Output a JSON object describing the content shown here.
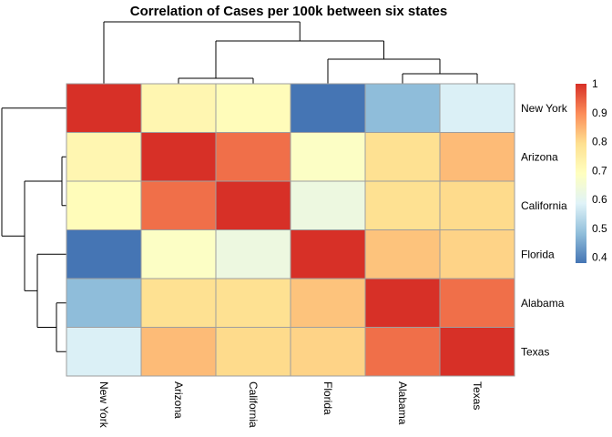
{
  "chart_data": {
    "type": "heatmap",
    "title": "Correlation of Cases per 100k between six states",
    "rows": [
      "New York",
      "Arizona",
      "California",
      "Florida",
      "Alabama",
      "Texas"
    ],
    "columns": [
      "New York",
      "Arizona",
      "California",
      "Florida",
      "Alabama",
      "Texas"
    ],
    "values": [
      [
        1.0,
        0.72,
        0.7,
        0.38,
        0.48,
        0.58
      ],
      [
        0.72,
        1.0,
        0.93,
        0.68,
        0.79,
        0.84
      ],
      [
        0.7,
        0.93,
        1.0,
        0.63,
        0.79,
        0.8
      ],
      [
        0.38,
        0.68,
        0.63,
        1.0,
        0.83,
        0.81
      ],
      [
        0.48,
        0.79,
        0.79,
        0.83,
        1.0,
        0.93
      ],
      [
        0.58,
        0.84,
        0.8,
        0.81,
        0.93,
        1.0
      ]
    ],
    "legend": {
      "ticks": [
        "1",
        "0.9",
        "0.8",
        "0.7",
        "0.6",
        "0.5",
        "0.4"
      ],
      "tick_values": [
        1.0,
        0.9,
        0.8,
        0.7,
        0.6,
        0.5,
        0.4
      ],
      "range": [
        0.38,
        1.0
      ],
      "placement": "right"
    },
    "color_scale": {
      "stops": [
        "#4575B4",
        "#91BFDB",
        "#E0F3F8",
        "#FFFFBF",
        "#FEE090",
        "#FC8D59",
        "#D73027"
      ]
    },
    "dendrogram": {
      "rows": true,
      "columns": true
    }
  }
}
